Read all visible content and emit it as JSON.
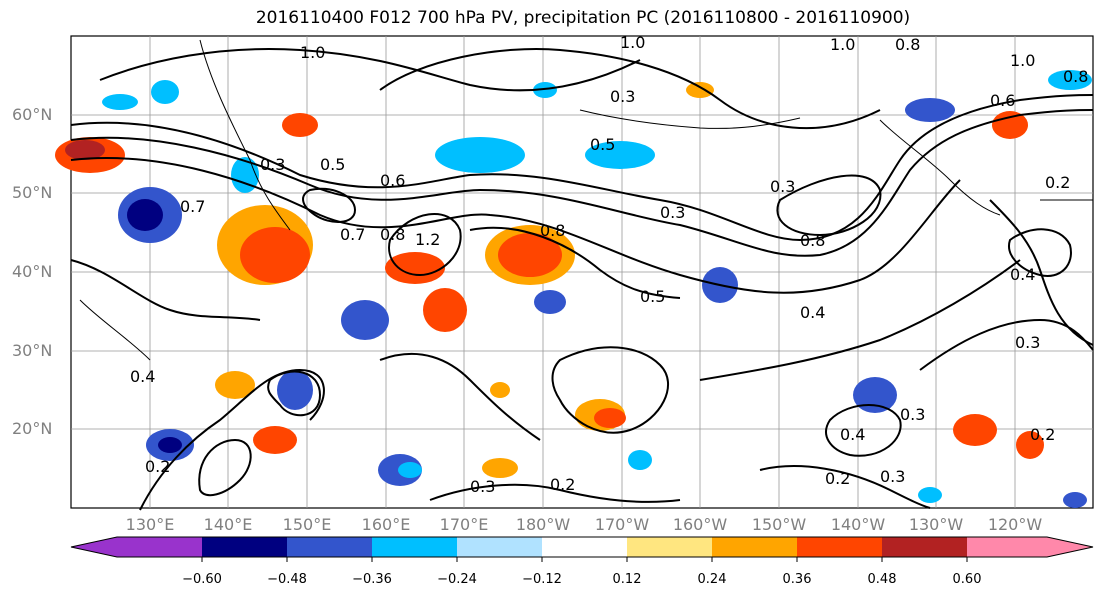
{
  "title": "2016110400 F012 700 hPa PV, precipitation PC (2016110800 - 2016110900)",
  "lat_labels": [
    "60°N",
    "50°N",
    "40°N",
    "30°N",
    "20°N"
  ],
  "lon_labels": [
    "130°E",
    "140°E",
    "150°E",
    "160°E",
    "170°E",
    "180°W",
    "170°W",
    "160°W",
    "150°W",
    "140°W",
    "130°W",
    "120°W"
  ],
  "colorbar": {
    "ticks": [
      "−0.60",
      "−0.48",
      "−0.36",
      "−0.24",
      "−0.12",
      "0.12",
      "0.24",
      "0.36",
      "0.48",
      "0.60"
    ],
    "colors": [
      "#9933cc",
      "#000080",
      "#3355cc",
      "#00bfff",
      "#b0e2ff",
      "#ffffff",
      "#ffe680",
      "#ffa500",
      "#ff4500",
      "#b22222",
      "#ff88aa"
    ]
  },
  "contour_labels": [
    "1.0",
    "0.8",
    "0.5",
    "0.3",
    "0.7",
    "0.6",
    "0.4",
    "0.2",
    "1.2"
  ]
}
